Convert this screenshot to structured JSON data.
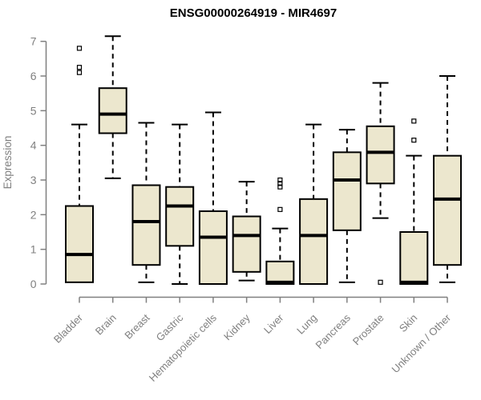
{
  "chart_data": {
    "type": "boxplot",
    "title": "ENSG00000264919 - MIR4697",
    "xlabel": "",
    "ylabel": "Expression",
    "ylim": [
      0,
      7
    ],
    "yticks": [
      0,
      1,
      2,
      3,
      4,
      5,
      6,
      7
    ],
    "grid": false,
    "whisker_style": "dashed",
    "categories": [
      "Bladder",
      "Brain",
      "Breast",
      "Gastric",
      "Hematopoietic cells",
      "Kidney",
      "Liver",
      "Lung",
      "Pancreas",
      "Prostate",
      "Skin",
      "Unknown / Other"
    ],
    "boxes": [
      {
        "category": "Bladder",
        "whisker_low": 0.05,
        "q1": 0.05,
        "median": 0.85,
        "q3": 2.25,
        "whisker_high": 4.6,
        "outliers": [
          6.1,
          6.25,
          6.8
        ]
      },
      {
        "category": "Brain",
        "whisker_low": 3.05,
        "q1": 4.35,
        "median": 4.9,
        "q3": 5.65,
        "whisker_high": 7.15,
        "outliers": []
      },
      {
        "category": "Breast",
        "whisker_low": 0.05,
        "q1": 0.55,
        "median": 1.8,
        "q3": 2.85,
        "whisker_high": 4.65,
        "outliers": []
      },
      {
        "category": "Gastric",
        "whisker_low": 0.0,
        "q1": 1.1,
        "median": 2.25,
        "q3": 2.8,
        "whisker_high": 4.6,
        "outliers": []
      },
      {
        "category": "Hematopoietic cells",
        "whisker_low": 0.0,
        "q1": 0.0,
        "median": 1.35,
        "q3": 2.1,
        "whisker_high": 4.95,
        "outliers": []
      },
      {
        "category": "Kidney",
        "whisker_low": 0.1,
        "q1": 0.35,
        "median": 1.4,
        "q3": 1.95,
        "whisker_high": 2.95,
        "outliers": []
      },
      {
        "category": "Liver",
        "whisker_low": 0.0,
        "q1": 0.0,
        "median": 0.05,
        "q3": 0.65,
        "whisker_high": 1.6,
        "outliers": [
          2.15,
          2.8,
          2.9,
          3.0
        ]
      },
      {
        "category": "Lung",
        "whisker_low": 0.0,
        "q1": 0.0,
        "median": 1.4,
        "q3": 2.45,
        "whisker_high": 4.6,
        "outliers": []
      },
      {
        "category": "Pancreas",
        "whisker_low": 0.05,
        "q1": 1.55,
        "median": 3.0,
        "q3": 3.8,
        "whisker_high": 4.45,
        "outliers": []
      },
      {
        "category": "Prostate",
        "whisker_low": 1.9,
        "q1": 2.9,
        "median": 3.8,
        "q3": 4.55,
        "whisker_high": 5.8,
        "outliers": [
          0.05
        ]
      },
      {
        "category": "Skin",
        "whisker_low": 0.0,
        "q1": 0.0,
        "median": 0.05,
        "q3": 1.5,
        "whisker_high": 3.7,
        "outliers": [
          4.15,
          4.7
        ]
      },
      {
        "category": "Unknown / Other",
        "whisker_low": 0.05,
        "q1": 0.55,
        "median": 2.45,
        "q3": 3.7,
        "whisker_high": 6.0,
        "outliers": []
      }
    ],
    "colors": {
      "box_fill": "#ECE7CE",
      "box_border": "#000000",
      "median": "#000000",
      "whisker": "#000000",
      "outlier": "#000000",
      "axis": "#808080",
      "tick_label": "#808080",
      "title": "#000000"
    }
  }
}
